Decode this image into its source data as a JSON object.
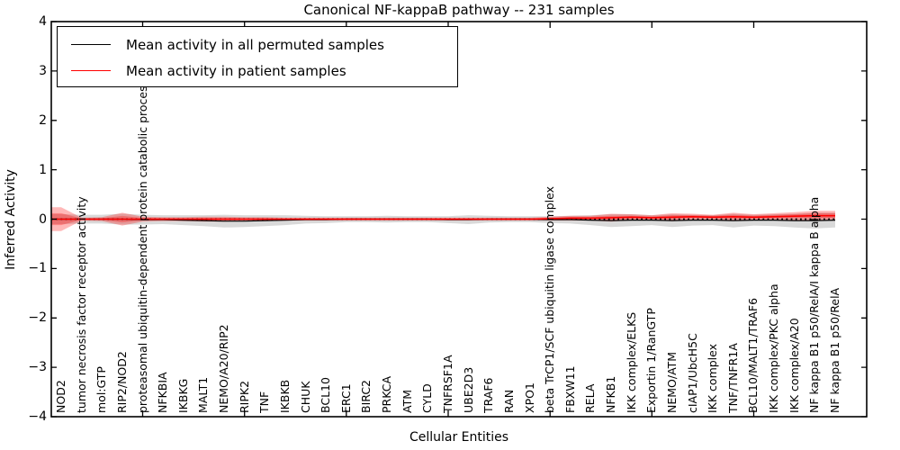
{
  "figure": {
    "title": "Canonical NF-kappaB pathway -- 231 samples",
    "xlabel": "Cellular Entities",
    "ylabel": "Inferred Activity"
  },
  "legend": {
    "items": [
      {
        "label": "Mean activity in all permuted samples",
        "color": "#000000"
      },
      {
        "label": "Mean activity in patient samples",
        "color": "#ff0000"
      }
    ]
  },
  "chart_data": {
    "type": "line",
    "title": "Canonical NF-kappaB pathway -- 231 samples",
    "xlabel": "Cellular Entities",
    "ylabel": "Inferred Activity",
    "ylim": [
      -4,
      4
    ],
    "yticks": [
      4,
      3,
      2,
      1,
      0,
      -1,
      -2,
      -3,
      -4
    ],
    "x_major_tick_indices": [
      4,
      9,
      14,
      19,
      24,
      29,
      34
    ],
    "grid": false,
    "legend_position": "upper left",
    "zero_line": {
      "style": "dotted",
      "color": "#000000",
      "y": 0
    },
    "categories": [
      "NOD2",
      "tumor necrosis factor receptor activity",
      "mol:GTP",
      "RIP2/NOD2",
      "proteasomal ubiquitin-dependent protein catabolic process",
      "NFKBIA",
      "IKBKG",
      "MALT1",
      "NEMO/A20/RIP2",
      "RIPK2",
      "TNF",
      "IKBKB",
      "CHUK",
      "BCL10",
      "ERC1",
      "BIRC2",
      "PRKCA",
      "ATM",
      "CYLD",
      "TNFRSF1A",
      "UBE2D3",
      "TRAF6",
      "RAN",
      "XPO1",
      "beta TrCP1/SCF ubiquitin ligase complex",
      "FBXW11",
      "RELA",
      "NFKB1",
      "IKK complex/ELKS",
      "Exportin 1/RanGTP",
      "NEMO/ATM",
      "cIAP1/UbcH5C",
      "IKK complex",
      "TNF/TNFR1A",
      "BCL10/MALT1/TRAF6",
      "IKK complex/PKC alpha",
      "IKK complex/A20",
      "NF kappa B1 p50/RelA/I kappa B alpha",
      "NF kappa B1 p50/RelA"
    ],
    "series": [
      {
        "name": "Mean activity in all permuted samples",
        "color": "#000000",
        "style": "solid",
        "values": [
          0,
          0,
          0,
          0,
          -0.01,
          -0.01,
          -0.02,
          -0.03,
          -0.04,
          -0.04,
          -0.03,
          -0.02,
          -0.01,
          -0.01,
          0,
          0,
          0,
          0,
          0,
          -0.01,
          -0.01,
          0,
          0,
          0,
          -0.01,
          -0.01,
          -0.02,
          -0.03,
          -0.02,
          -0.02,
          -0.03,
          -0.02,
          -0.02,
          -0.03,
          -0.02,
          -0.02,
          -0.03,
          -0.03,
          -0.02
        ]
      },
      {
        "name": "Mean activity in patient samples",
        "color": "#ff0000",
        "style": "solid",
        "values": [
          0,
          0,
          0,
          0,
          0,
          0,
          0,
          0,
          0,
          0,
          0,
          0,
          0,
          0,
          0,
          0,
          0,
          0,
          0,
          0,
          0,
          0,
          0,
          0,
          0.01,
          0.02,
          0.02,
          0.03,
          0.04,
          0.03,
          0.04,
          0.05,
          0.04,
          0.05,
          0.04,
          0.05,
          0.06,
          0.07,
          0.07
        ]
      }
    ],
    "bands": [
      {
        "name": "permuted samples spread",
        "around_series": 0,
        "color": "rgba(0,0,0,0.15)",
        "half_widths": [
          0.1,
          0.09,
          0.09,
          0.11,
          0.1,
          0.09,
          0.1,
          0.11,
          0.13,
          0.12,
          0.11,
          0.1,
          0.08,
          0.07,
          0.06,
          0.06,
          0.07,
          0.06,
          0.06,
          0.07,
          0.09,
          0.07,
          0.06,
          0.06,
          0.07,
          0.08,
          0.1,
          0.13,
          0.12,
          0.1,
          0.13,
          0.11,
          0.1,
          0.14,
          0.11,
          0.12,
          0.14,
          0.16,
          0.15
        ]
      },
      {
        "name": "patient samples spread",
        "around_series": 1,
        "color": "rgba(255,0,0,0.28)",
        "half_widths": [
          0.24,
          0.03,
          0.04,
          0.13,
          0.05,
          0.04,
          0.04,
          0.05,
          0.05,
          0.04,
          0.04,
          0.03,
          0.03,
          0.03,
          0.03,
          0.03,
          0.03,
          0.03,
          0.03,
          0.03,
          0.03,
          0.03,
          0.03,
          0.03,
          0.04,
          0.05,
          0.05,
          0.08,
          0.06,
          0.05,
          0.08,
          0.06,
          0.05,
          0.08,
          0.06,
          0.07,
          0.08,
          0.1,
          0.1
        ]
      }
    ]
  }
}
